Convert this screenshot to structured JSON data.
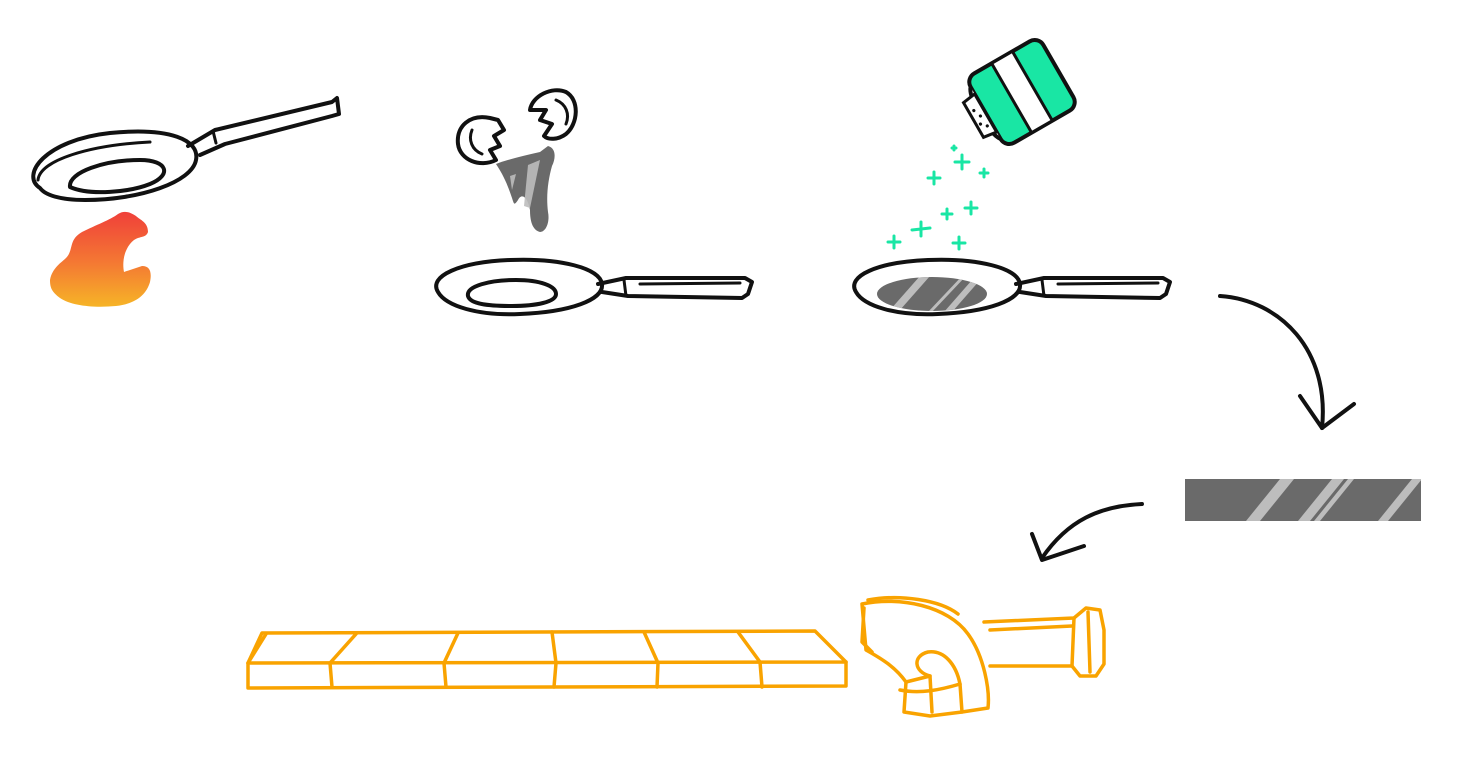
{
  "scene": {
    "description_visible_text": "",
    "colors": {
      "ink": "#111111",
      "flame_top": "#f0403a",
      "flame_bottom": "#f6b427",
      "salt_shaker": "#19e6a4",
      "salt_sparkle": "#19e6a4",
      "egg_grey_dark": "#6a6a6a",
      "egg_grey_light": "#bdbdbd",
      "sword_orange": "#f9a300"
    },
    "icons": [
      "pan-icon",
      "flame-icon",
      "eggshell-icon",
      "pouring-egg-icon",
      "salt-shaker-icon",
      "arrow-icon",
      "omelette-strip-icon",
      "sword-icon"
    ]
  }
}
